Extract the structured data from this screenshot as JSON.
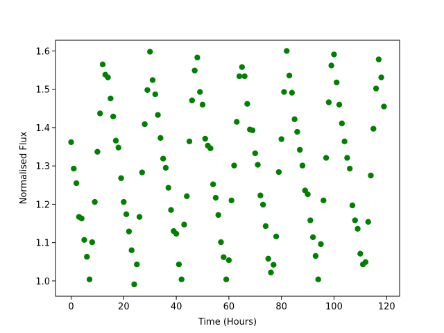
{
  "chart_data": {
    "type": "scatter",
    "xlabel": "Time (Hours)",
    "ylabel": "Normalised Flux",
    "color": "#008000",
    "grid": false,
    "xlim": [
      -5.95,
      124.95
    ],
    "ylim": [
      0.96,
      1.628
    ],
    "xticks": [
      0,
      20,
      40,
      60,
      80,
      100,
      120
    ],
    "yticks": [
      {
        "value": 1,
        "label": "1.0"
      },
      1.1,
      1.2,
      1.3,
      1.4,
      1.5,
      1.6
    ],
    "x": [
      0,
      1,
      2,
      3,
      4,
      5,
      6,
      7,
      8,
      9,
      10,
      11,
      12,
      13,
      14,
      15,
      16,
      17,
      18,
      19,
      20,
      21,
      22,
      23,
      24,
      25,
      26,
      27,
      28,
      29,
      30,
      31,
      32,
      33,
      34,
      35,
      36,
      37,
      38,
      39,
      40,
      41,
      42,
      43,
      44,
      45,
      46,
      47,
      48,
      49,
      50,
      51,
      52,
      53,
      54,
      55,
      56,
      57,
      58,
      59,
      60,
      61,
      62,
      63,
      64,
      65,
      66,
      67,
      68,
      69,
      70,
      71,
      72,
      73,
      74,
      75,
      76,
      77,
      78,
      79,
      80,
      81,
      82,
      83,
      84,
      85,
      86,
      87,
      88,
      89,
      90,
      91,
      92,
      93,
      94,
      95,
      96,
      97,
      98,
      99,
      100,
      101,
      102,
      103,
      104,
      105,
      106,
      107,
      108,
      109,
      110,
      111,
      112,
      113,
      114,
      115,
      116,
      117,
      118,
      119
    ],
    "values": [
      1.362,
      1.293,
      1.255,
      1.167,
      1.163,
      1.107,
      1.063,
      1.004,
      1.101,
      1.206,
      1.337,
      1.437,
      1.565,
      1.538,
      1.531,
      1.476,
      1.429,
      1.366,
      1.348,
      1.268,
      1.206,
      1.174,
      1.129,
      1.08,
      0.991,
      1.043,
      1.167,
      1.283,
      1.409,
      1.498,
      1.598,
      1.524,
      1.487,
      1.433,
      1.373,
      1.319,
      1.295,
      1.243,
      1.185,
      1.13,
      1.123,
      1.043,
      1.004,
      1.147,
      1.221,
      1.364,
      1.471,
      1.549,
      1.583,
      1.493,
      1.46,
      1.371,
      1.353,
      1.346,
      1.252,
      1.217,
      1.172,
      1.101,
      1.062,
      1.004,
      1.054,
      1.21,
      1.301,
      1.415,
      1.534,
      1.558,
      1.534,
      1.462,
      1.395,
      1.393,
      1.333,
      1.303,
      1.223,
      1.199,
      1.143,
      1.058,
      1.022,
      1.042,
      1.116,
      1.284,
      1.37,
      1.493,
      1.6,
      1.536,
      1.491,
      1.422,
      1.389,
      1.342,
      1.301,
      1.236,
      1.226,
      1.158,
      1.114,
      1.065,
      1.004,
      1.096,
      1.21,
      1.321,
      1.466,
      1.562,
      1.591,
      1.518,
      1.46,
      1.411,
      1.364,
      1.321,
      1.293,
      1.197,
      1.158,
      1.136,
      1.071,
      1.043,
      1.049,
      1.154,
      1.275,
      1.397,
      1.502,
      1.578,
      1.531,
      1.455
    ]
  }
}
